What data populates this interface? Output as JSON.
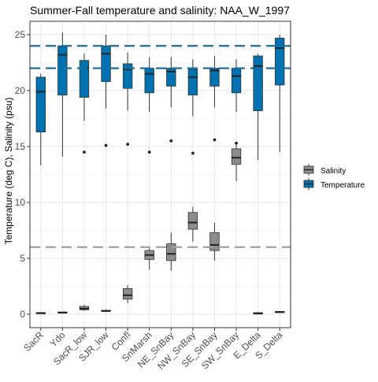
{
  "chart_data": {
    "type": "boxplot",
    "title": "Summer-Fall temperature and salinity: NAA_W_1997",
    "xlabel": "",
    "ylabel": "Temperature (deg C), Salinity (psu)",
    "ylim": [
      -1.2,
      26.2
    ],
    "yticks": [
      0,
      5,
      10,
      15,
      20,
      25
    ],
    "grid": true,
    "legend_position": "right",
    "categories": [
      "SacR",
      "Ydo",
      "SacR_low",
      "SJR_low",
      "Confl",
      "SnMarsh",
      "NE_SnBay",
      "NW_SnBay",
      "SE_SnBay",
      "SW_SnBay",
      "E_Delta",
      "S_Delta"
    ],
    "reference_lines": [
      {
        "y": 24.0,
        "color": "#1a6e9e",
        "dash": "long"
      },
      {
        "y": 22.0,
        "color": "#1a6e9e",
        "dash": "long"
      },
      {
        "y": 6.0,
        "color": "#a0a0a0",
        "dash": "long"
      }
    ],
    "series": [
      {
        "name": "Salinity",
        "color": "#8c8c8c",
        "boxes": [
          {
            "category": "SacR",
            "min": 0.1,
            "q1": 0.1,
            "median": 0.1,
            "q3": 0.15,
            "max": 0.15,
            "outliers": []
          },
          {
            "category": "Ydo",
            "min": 0.1,
            "q1": 0.12,
            "median": 0.15,
            "q3": 0.2,
            "max": 0.22,
            "outliers": []
          },
          {
            "category": "SacR_low",
            "min": 0.3,
            "q1": 0.4,
            "median": 0.5,
            "q3": 0.7,
            "max": 0.85,
            "outliers": []
          },
          {
            "category": "SJR_low",
            "min": 0.2,
            "q1": 0.25,
            "median": 0.3,
            "q3": 0.35,
            "max": 0.45,
            "outliers": []
          },
          {
            "category": "Confl",
            "min": 1.0,
            "q1": 1.35,
            "median": 1.7,
            "q3": 2.3,
            "max": 2.6,
            "outliers": []
          },
          {
            "category": "SnMarsh",
            "min": 4.0,
            "q1": 4.9,
            "median": 5.3,
            "q3": 5.7,
            "max": 5.9,
            "outliers": []
          },
          {
            "category": "NE_SnBay",
            "min": 3.9,
            "q1": 4.8,
            "median": 5.4,
            "q3": 6.3,
            "max": 7.3,
            "outliers": []
          },
          {
            "category": "NW_SnBay",
            "min": 6.5,
            "q1": 7.6,
            "median": 8.2,
            "q3": 9.1,
            "max": 9.6,
            "outliers": []
          },
          {
            "category": "SE_SnBay",
            "min": 4.8,
            "q1": 5.7,
            "median": 6.2,
            "q3": 7.3,
            "max": 8.2,
            "outliers": []
          },
          {
            "category": "SW_SnBay",
            "min": 11.9,
            "q1": 13.4,
            "median": 14.0,
            "q3": 14.8,
            "max": 15.4,
            "outliers": []
          },
          {
            "category": "E_Delta",
            "min": 0.1,
            "q1": 0.1,
            "median": 0.1,
            "q3": 0.12,
            "max": 0.12,
            "outliers": []
          },
          {
            "category": "S_Delta",
            "min": 0.15,
            "q1": 0.18,
            "median": 0.2,
            "q3": 0.25,
            "max": 0.3,
            "outliers": []
          }
        ]
      },
      {
        "name": "Temperature",
        "color": "#0072b2",
        "boxes": [
          {
            "category": "SacR",
            "min": 13.3,
            "q1": 16.3,
            "median": 19.9,
            "q3": 21.2,
            "max": 21.5,
            "outliers": []
          },
          {
            "category": "Ydo",
            "min": 14.1,
            "q1": 19.6,
            "median": 23.2,
            "q3": 24.0,
            "max": 25.2,
            "outliers": []
          },
          {
            "category": "SacR_low",
            "min": 17.3,
            "q1": 19.4,
            "median": 22.0,
            "q3": 22.7,
            "max": 23.3,
            "outliers": [
              14.5
            ]
          },
          {
            "category": "SJR_low",
            "min": 18.4,
            "q1": 20.8,
            "median": 23.3,
            "q3": 24.0,
            "max": 25.0,
            "outliers": [
              15.1
            ]
          },
          {
            "category": "Confl",
            "min": 18.2,
            "q1": 20.2,
            "median": 21.9,
            "q3": 22.4,
            "max": 23.4,
            "outliers": [
              15.2
            ]
          },
          {
            "category": "SnMarsh",
            "min": 18.1,
            "q1": 19.8,
            "median": 21.5,
            "q3": 22.0,
            "max": 23.0,
            "outliers": [
              14.5
            ]
          },
          {
            "category": "NE_SnBay",
            "min": 18.5,
            "q1": 20.4,
            "median": 21.7,
            "q3": 22.0,
            "max": 23.0,
            "outliers": [
              15.5
            ]
          },
          {
            "category": "NW_SnBay",
            "min": 17.7,
            "q1": 19.6,
            "median": 21.2,
            "q3": 21.9,
            "max": 22.8,
            "outliers": [
              14.4
            ]
          },
          {
            "category": "SE_SnBay",
            "min": 18.5,
            "q1": 20.4,
            "median": 21.8,
            "q3": 22.0,
            "max": 23.1,
            "outliers": [
              15.6
            ]
          },
          {
            "category": "SW_SnBay",
            "min": 18.1,
            "q1": 19.8,
            "median": 21.3,
            "q3": 22.0,
            "max": 22.8,
            "outliers": [
              15.3
            ]
          },
          {
            "category": "E_Delta",
            "min": 13.8,
            "q1": 18.2,
            "median": 22.2,
            "q3": 23.1,
            "max": 23.3,
            "outliers": []
          },
          {
            "category": "S_Delta",
            "min": 14.5,
            "q1": 20.5,
            "median": 23.8,
            "q3": 24.7,
            "max": 25.0,
            "outliers": []
          }
        ]
      }
    ]
  }
}
